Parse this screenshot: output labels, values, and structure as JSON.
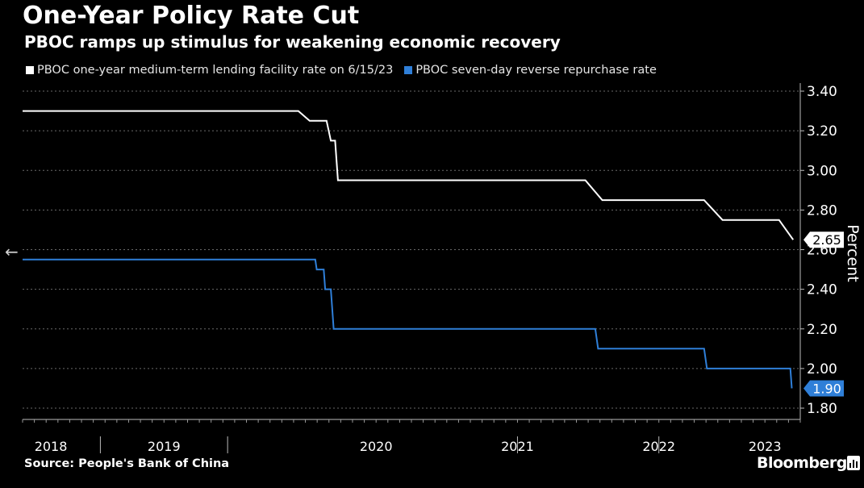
{
  "header": {
    "title": "One-Year Policy Rate Cut",
    "subtitle": "PBOC ramps up stimulus for weakening economic recovery"
  },
  "footer": {
    "source": "Source: People's Bank of China",
    "brand": "Bloomberg"
  },
  "icons": {
    "back": "left-arrow-icon",
    "brand": "bloomberg-chart-icon"
  },
  "chart_data": {
    "type": "line",
    "title": "One-Year Policy Rate Cut",
    "subtitle": "PBOC ramps up stimulus for weakening economic recovery",
    "xlabel": "",
    "ylabel": "Percent",
    "ylim": [
      1.8,
      3.4
    ],
    "xlim": [
      2018.0,
      2023.5
    ],
    "grid": true,
    "yticks": [
      1.8,
      2.0,
      2.2,
      2.4,
      2.6,
      2.8,
      3.0,
      3.2,
      3.4
    ],
    "ytick_labels": [
      "1.80",
      "2.00",
      "2.20",
      "2.40",
      "2.60",
      "2.80",
      "3.00",
      "3.20",
      "3.40"
    ],
    "xtick_labels": [
      {
        "label": "2018",
        "center": 2018.2
      },
      {
        "label": "2019",
        "center": 2019.0
      },
      {
        "label": "2020",
        "center": 2020.5
      },
      {
        "label": "2021",
        "center": 2021.5
      },
      {
        "label": "2022",
        "center": 2022.5
      },
      {
        "label": "2023",
        "center": 2023.25
      }
    ],
    "xseparators": [
      2018.55,
      2019.45,
      2021.5,
      2022.5
    ],
    "series": [
      {
        "name": "PBOC one-year medium-term lending facility rate on 6/15/23",
        "color": "#ffffff",
        "end_label": "2.65",
        "points": [
          [
            2018.0,
            3.3
          ],
          [
            2019.95,
            3.3
          ],
          [
            2020.03,
            3.25
          ],
          [
            2020.15,
            3.25
          ],
          [
            2020.18,
            3.15
          ],
          [
            2020.21,
            3.15
          ],
          [
            2020.23,
            2.95
          ],
          [
            2021.98,
            2.95
          ],
          [
            2022.1,
            2.85
          ],
          [
            2022.82,
            2.85
          ],
          [
            2022.95,
            2.75
          ],
          [
            2023.35,
            2.75
          ],
          [
            2023.45,
            2.65
          ]
        ]
      },
      {
        "name": "PBOC seven-day reverse repurchase rate",
        "color": "#2f7fd8",
        "end_label": "1.90",
        "points": [
          [
            2018.0,
            2.55
          ],
          [
            2020.07,
            2.55
          ],
          [
            2020.08,
            2.5
          ],
          [
            2020.13,
            2.5
          ],
          [
            2020.14,
            2.4
          ],
          [
            2020.18,
            2.4
          ],
          [
            2020.2,
            2.2
          ],
          [
            2022.05,
            2.2
          ],
          [
            2022.07,
            2.1
          ],
          [
            2022.82,
            2.1
          ],
          [
            2022.84,
            2.0
          ],
          [
            2023.43,
            2.0
          ],
          [
            2023.44,
            1.9
          ]
        ]
      }
    ]
  }
}
